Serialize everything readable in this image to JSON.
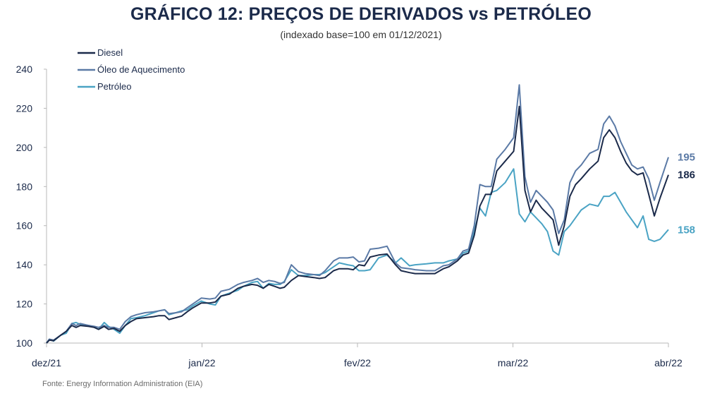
{
  "chart_data": {
    "type": "line",
    "title": "GRÁFICO 12: PREÇOS DE DERIVADOS vs PETRÓLEO",
    "subtitle": "(indexado base=100 em 01/12/2021)",
    "source": "Fonte: Energy Information Administration (EIA)",
    "xlabel": "",
    "ylabel": "",
    "x_ticks": [
      "dez/21",
      "jan/22",
      "fev/22",
      "mar/22",
      "abr/22"
    ],
    "ylim": [
      100,
      240
    ],
    "y_ticks": [
      100,
      120,
      140,
      160,
      180,
      200,
      220,
      240
    ],
    "grid": false,
    "legend_position": "top-left",
    "series": [
      {
        "name": "Diesel",
        "color": "#1b2a4a",
        "end_label": "186",
        "points": [
          [
            0,
            100
          ],
          [
            0.1,
            101.5
          ],
          [
            0.25,
            101.2
          ],
          [
            0.5,
            104
          ],
          [
            0.7,
            106
          ],
          [
            0.9,
            109
          ],
          [
            1.05,
            108
          ],
          [
            1.2,
            109
          ],
          [
            1.5,
            108.5
          ],
          [
            1.7,
            108
          ],
          [
            1.85,
            107
          ],
          [
            2.05,
            108.5
          ],
          [
            2.2,
            107
          ],
          [
            2.4,
            107.5
          ],
          [
            2.6,
            106
          ],
          [
            2.8,
            109
          ],
          [
            3.0,
            111
          ],
          [
            3.2,
            112.5
          ],
          [
            3.5,
            113
          ],
          [
            3.8,
            113.5
          ],
          [
            4.0,
            114
          ],
          [
            4.2,
            114
          ],
          [
            4.35,
            112
          ],
          [
            4.6,
            113
          ],
          [
            4.8,
            113.8
          ],
          [
            5.0,
            116
          ],
          [
            5.2,
            118
          ],
          [
            5.5,
            120.5
          ],
          [
            5.8,
            120.5
          ],
          [
            6.0,
            121
          ],
          [
            6.2,
            124
          ],
          [
            6.5,
            125
          ],
          [
            6.8,
            128
          ],
          [
            7.0,
            129
          ],
          [
            7.3,
            130
          ],
          [
            7.5,
            129.5
          ],
          [
            7.7,
            128
          ],
          [
            7.9,
            130
          ],
          [
            8.1,
            129
          ],
          [
            8.3,
            128
          ],
          [
            8.45,
            128.5
          ],
          [
            8.7,
            132
          ],
          [
            8.95,
            134.5
          ],
          [
            9.2,
            134
          ],
          [
            9.5,
            133.5
          ],
          [
            9.7,
            133
          ],
          [
            9.9,
            133.5
          ],
          [
            10.2,
            137
          ],
          [
            10.4,
            138
          ],
          [
            10.7,
            138
          ],
          [
            10.9,
            137.5
          ],
          [
            11.1,
            140
          ],
          [
            11.3,
            139.5
          ],
          [
            11.5,
            144
          ],
          [
            11.8,
            145
          ],
          [
            12.1,
            145.5
          ],
          [
            12.4,
            140
          ],
          [
            12.6,
            137
          ],
          [
            12.9,
            136
          ],
          [
            13.1,
            135.5
          ],
          [
            13.5,
            135.5
          ],
          [
            13.8,
            135.5
          ],
          [
            14.1,
            138
          ],
          [
            14.3,
            139
          ],
          [
            14.6,
            142
          ],
          [
            14.8,
            145
          ],
          [
            15.0,
            146
          ],
          [
            15.2,
            155
          ],
          [
            15.4,
            170
          ],
          [
            15.6,
            176
          ],
          [
            15.8,
            176
          ],
          [
            16.0,
            188
          ],
          [
            16.3,
            193
          ],
          [
            16.6,
            198
          ],
          [
            16.8,
            221
          ],
          [
            17.0,
            178
          ],
          [
            17.2,
            167
          ],
          [
            17.4,
            173
          ],
          [
            17.6,
            169
          ],
          [
            17.8,
            166
          ],
          [
            18.0,
            163
          ],
          [
            18.2,
            150
          ],
          [
            18.4,
            160
          ],
          [
            18.6,
            175
          ],
          [
            18.8,
            181
          ],
          [
            19.0,
            184
          ],
          [
            19.3,
            189
          ],
          [
            19.6,
            193
          ],
          [
            19.8,
            205
          ],
          [
            20.0,
            209
          ],
          [
            20.2,
            205
          ],
          [
            20.4,
            198
          ],
          [
            20.6,
            192
          ],
          [
            20.8,
            188
          ],
          [
            21.0,
            186
          ],
          [
            21.2,
            187
          ],
          [
            21.4,
            176
          ],
          [
            21.6,
            165
          ],
          [
            21.8,
            174
          ],
          [
            22.1,
            186
          ]
        ]
      },
      {
        "name": "Óleo de Aquecimento",
        "color": "#5b7aa6",
        "end_label": "195",
        "points": [
          [
            0,
            100
          ],
          [
            0.1,
            102
          ],
          [
            0.25,
            101.5
          ],
          [
            0.5,
            104
          ],
          [
            0.7,
            106
          ],
          [
            0.9,
            110
          ],
          [
            1.05,
            109
          ],
          [
            1.2,
            110
          ],
          [
            1.5,
            109
          ],
          [
            1.7,
            108.5
          ],
          [
            1.85,
            108
          ],
          [
            2.05,
            109
          ],
          [
            2.2,
            108
          ],
          [
            2.4,
            108
          ],
          [
            2.6,
            107
          ],
          [
            2.8,
            111
          ],
          [
            3.0,
            113.5
          ],
          [
            3.2,
            114.5
          ],
          [
            3.5,
            115.5
          ],
          [
            3.8,
            116
          ],
          [
            4.0,
            116.5
          ],
          [
            4.2,
            117
          ],
          [
            4.35,
            115
          ],
          [
            4.6,
            115.5
          ],
          [
            4.8,
            116
          ],
          [
            5.0,
            118
          ],
          [
            5.2,
            120
          ],
          [
            5.5,
            123
          ],
          [
            5.8,
            122.5
          ],
          [
            6.0,
            123
          ],
          [
            6.2,
            126.5
          ],
          [
            6.5,
            127.5
          ],
          [
            6.8,
            130
          ],
          [
            7.0,
            131
          ],
          [
            7.3,
            132
          ],
          [
            7.5,
            133
          ],
          [
            7.7,
            131
          ],
          [
            7.9,
            132
          ],
          [
            8.1,
            131.5
          ],
          [
            8.3,
            130.5
          ],
          [
            8.45,
            131
          ],
          [
            8.7,
            140
          ],
          [
            8.95,
            136.5
          ],
          [
            9.2,
            135.5
          ],
          [
            9.5,
            135
          ],
          [
            9.7,
            134.5
          ],
          [
            9.9,
            137
          ],
          [
            10.2,
            142
          ],
          [
            10.4,
            143.5
          ],
          [
            10.7,
            143.5
          ],
          [
            10.9,
            144
          ],
          [
            11.1,
            141.5
          ],
          [
            11.3,
            142
          ],
          [
            11.5,
            148
          ],
          [
            11.8,
            148.5
          ],
          [
            12.1,
            149.5
          ],
          [
            12.4,
            141
          ],
          [
            12.6,
            138.5
          ],
          [
            12.9,
            138
          ],
          [
            13.1,
            137.5
          ],
          [
            13.5,
            137
          ],
          [
            13.8,
            137
          ],
          [
            14.1,
            139.5
          ],
          [
            14.3,
            140
          ],
          [
            14.6,
            143
          ],
          [
            14.8,
            147
          ],
          [
            15.0,
            148
          ],
          [
            15.2,
            160
          ],
          [
            15.4,
            181
          ],
          [
            15.6,
            180
          ],
          [
            15.8,
            180
          ],
          [
            16.0,
            194
          ],
          [
            16.3,
            199
          ],
          [
            16.6,
            205
          ],
          [
            16.8,
            232
          ],
          [
            17.0,
            185
          ],
          [
            17.2,
            172
          ],
          [
            17.4,
            178
          ],
          [
            17.6,
            175
          ],
          [
            17.8,
            172
          ],
          [
            18.0,
            168
          ],
          [
            18.2,
            156
          ],
          [
            18.4,
            163
          ],
          [
            18.6,
            182
          ],
          [
            18.8,
            188
          ],
          [
            19.0,
            191
          ],
          [
            19.3,
            197
          ],
          [
            19.6,
            199
          ],
          [
            19.8,
            212
          ],
          [
            20.0,
            216
          ],
          [
            20.2,
            211
          ],
          [
            20.4,
            203
          ],
          [
            20.6,
            197
          ],
          [
            20.8,
            191
          ],
          [
            21.0,
            189
          ],
          [
            21.2,
            190
          ],
          [
            21.4,
            184
          ],
          [
            21.6,
            173
          ],
          [
            21.8,
            182
          ],
          [
            22.1,
            195
          ]
        ]
      },
      {
        "name": "Petróleo",
        "color": "#4aa3c4",
        "end_label": "158",
        "points": [
          [
            0,
            100
          ],
          [
            0.1,
            102
          ],
          [
            0.25,
            101
          ],
          [
            0.5,
            104
          ],
          [
            0.7,
            105
          ],
          [
            0.9,
            110
          ],
          [
            1.05,
            110.5
          ],
          [
            1.2,
            109.5
          ],
          [
            1.5,
            109
          ],
          [
            1.7,
            108
          ],
          [
            1.85,
            107
          ],
          [
            2.05,
            110.5
          ],
          [
            2.2,
            108.5
          ],
          [
            2.4,
            107
          ],
          [
            2.6,
            105
          ],
          [
            2.8,
            109
          ],
          [
            3.0,
            112.5
          ],
          [
            3.2,
            113
          ],
          [
            3.5,
            114
          ],
          [
            3.8,
            115.5
          ],
          [
            4.0,
            116.5
          ],
          [
            4.2,
            117
          ],
          [
            4.35,
            114.5
          ],
          [
            4.6,
            115.5
          ],
          [
            4.8,
            116.5
          ],
          [
            5.0,
            117
          ],
          [
            5.2,
            119
          ],
          [
            5.5,
            121.5
          ],
          [
            5.8,
            120
          ],
          [
            6.0,
            119.5
          ],
          [
            6.2,
            124
          ],
          [
            6.5,
            125.5
          ],
          [
            6.8,
            127
          ],
          [
            7.0,
            129
          ],
          [
            7.3,
            131
          ],
          [
            7.5,
            131.5
          ],
          [
            7.7,
            128
          ],
          [
            7.9,
            130.5
          ],
          [
            8.1,
            130
          ],
          [
            8.3,
            130
          ],
          [
            8.45,
            131.5
          ],
          [
            8.7,
            137.5
          ],
          [
            8.95,
            134.5
          ],
          [
            9.2,
            134.5
          ],
          [
            9.5,
            135
          ],
          [
            9.7,
            135
          ],
          [
            9.9,
            136
          ],
          [
            10.2,
            139
          ],
          [
            10.4,
            141
          ],
          [
            10.7,
            140
          ],
          [
            10.9,
            139.5
          ],
          [
            11.1,
            137
          ],
          [
            11.3,
            137
          ],
          [
            11.5,
            137.5
          ],
          [
            11.8,
            143.5
          ],
          [
            12.1,
            145
          ],
          [
            12.4,
            141
          ],
          [
            12.6,
            143.5
          ],
          [
            12.9,
            139.5
          ],
          [
            13.1,
            140
          ],
          [
            13.5,
            140.5
          ],
          [
            13.8,
            141
          ],
          [
            14.1,
            141
          ],
          [
            14.3,
            142
          ],
          [
            14.6,
            143
          ],
          [
            14.8,
            146
          ],
          [
            15.0,
            147
          ],
          [
            15.2,
            157
          ],
          [
            15.4,
            169
          ],
          [
            15.6,
            165
          ],
          [
            15.8,
            177
          ],
          [
            16.0,
            178
          ],
          [
            16.3,
            182
          ],
          [
            16.6,
            189
          ],
          [
            16.8,
            166
          ],
          [
            17.0,
            162
          ],
          [
            17.2,
            167
          ],
          [
            17.4,
            164
          ],
          [
            17.6,
            161
          ],
          [
            17.8,
            157
          ],
          [
            18.0,
            147
          ],
          [
            18.2,
            145
          ],
          [
            18.4,
            157
          ],
          [
            18.6,
            160
          ],
          [
            18.8,
            164
          ],
          [
            19.0,
            168
          ],
          [
            19.3,
            171
          ],
          [
            19.6,
            170
          ],
          [
            19.8,
            175
          ],
          [
            20.0,
            175
          ],
          [
            20.2,
            177
          ],
          [
            20.4,
            172
          ],
          [
            20.6,
            167
          ],
          [
            20.8,
            163
          ],
          [
            21.0,
            159
          ],
          [
            21.2,
            165
          ],
          [
            21.4,
            153
          ],
          [
            21.6,
            152
          ],
          [
            21.8,
            153
          ],
          [
            22.1,
            158
          ]
        ]
      }
    ]
  }
}
